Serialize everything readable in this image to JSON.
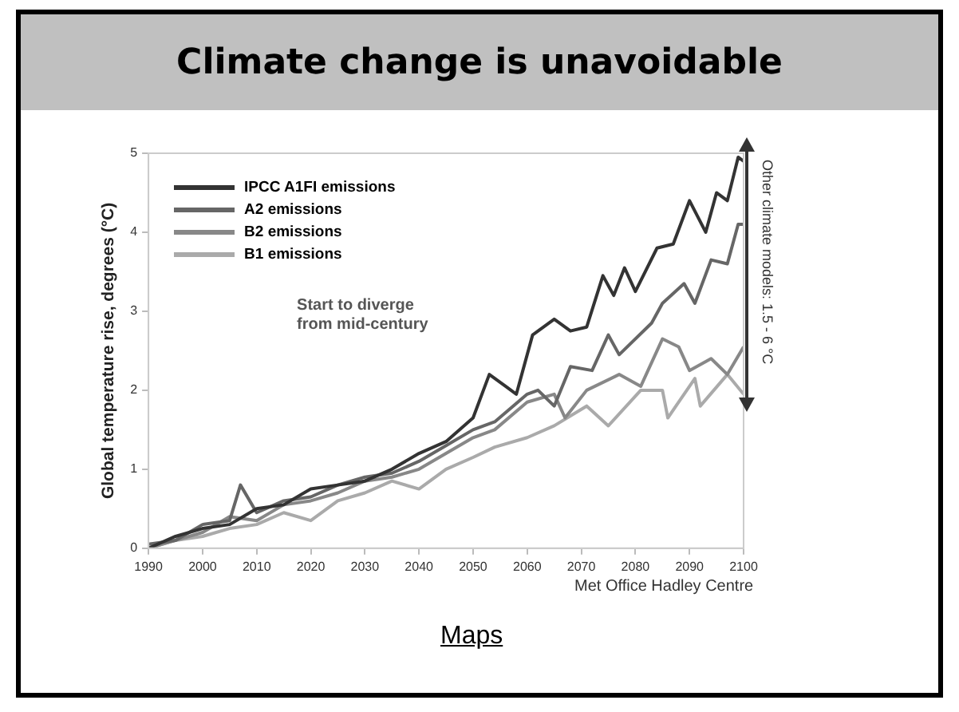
{
  "chart_data": {
    "type": "line",
    "title": "Climate change is unavoidable",
    "ylabel": "Global temperature rise, degrees (°C)",
    "xlim": [
      1990,
      2100
    ],
    "xticks": [
      1990,
      2000,
      2010,
      2020,
      2030,
      2040,
      2050,
      2060,
      2070,
      2080,
      2090,
      2100
    ],
    "ylim": [
      0,
      5
    ],
    "yticks": [
      0,
      1,
      2,
      3,
      4,
      5
    ],
    "grid": false,
    "legend": "top left",
    "marker": "none",
    "line_style": "solid",
    "annotations": [
      "Start to diverge from mid-century",
      "Other climate models: 1.5 - 6 °C",
      "Met Office Hadley Centre",
      "Maps"
    ],
    "series": [
      {
        "name": "IPCC A1FI emissions",
        "color": "#333333",
        "x": [
          1990,
          1995,
          2000,
          2005,
          2010,
          2015,
          2020,
          2025,
          2030,
          2035,
          2040,
          2045,
          2050,
          2053,
          2056,
          2058,
          2061,
          2065,
          2068,
          2071,
          2074,
          2076,
          2078,
          2080,
          2084,
          2087,
          2090,
          2093,
          2095,
          2097,
          2099,
          2100
        ],
        "values": [
          0,
          0.15,
          0.25,
          0.3,
          0.5,
          0.55,
          0.75,
          0.8,
          0.85,
          1.0,
          1.2,
          1.35,
          1.65,
          2.2,
          2.05,
          1.95,
          2.7,
          2.9,
          2.75,
          2.8,
          3.45,
          3.2,
          3.55,
          3.25,
          3.8,
          3.85,
          4.4,
          4.0,
          4.5,
          4.4,
          4.95,
          4.9
        ]
      },
      {
        "name": "A2 emissions",
        "color": "#666666",
        "x": [
          1990,
          1995,
          2000,
          2005,
          2007,
          2010,
          2015,
          2020,
          2025,
          2030,
          2035,
          2040,
          2045,
          2050,
          2054,
          2060,
          2062,
          2065,
          2068,
          2072,
          2075,
          2077,
          2083,
          2085,
          2089,
          2091,
          2094,
          2097,
          2099,
          2100
        ],
        "values": [
          0.05,
          0.1,
          0.3,
          0.35,
          0.8,
          0.45,
          0.6,
          0.65,
          0.8,
          0.9,
          0.95,
          1.1,
          1.3,
          1.5,
          1.6,
          1.95,
          2.0,
          1.8,
          2.3,
          2.25,
          2.7,
          2.45,
          2.85,
          3.1,
          3.35,
          3.1,
          3.65,
          3.6,
          4.1,
          4.1
        ]
      },
      {
        "name": "B2 emissions",
        "color": "#888888",
        "x": [
          1990,
          1995,
          2000,
          2005,
          2010,
          2015,
          2020,
          2025,
          2030,
          2035,
          2040,
          2045,
          2050,
          2054,
          2060,
          2065,
          2067,
          2071,
          2077,
          2081,
          2085,
          2088,
          2090,
          2094,
          2097,
          2100
        ],
        "values": [
          0,
          0.1,
          0.2,
          0.4,
          0.35,
          0.55,
          0.6,
          0.7,
          0.85,
          0.9,
          1.0,
          1.2,
          1.4,
          1.5,
          1.85,
          1.95,
          1.65,
          2.0,
          2.2,
          2.05,
          2.65,
          2.55,
          2.25,
          2.4,
          2.2,
          2.55
        ]
      },
      {
        "name": "B1 emissions",
        "color": "#aaaaaa",
        "x": [
          1990,
          1995,
          2000,
          2005,
          2010,
          2015,
          2020,
          2025,
          2030,
          2035,
          2040,
          2045,
          2050,
          2054,
          2060,
          2065,
          2071,
          2075,
          2081,
          2085,
          2086,
          2091,
          2092,
          2097,
          2100
        ],
        "values": [
          0,
          0.1,
          0.15,
          0.25,
          0.3,
          0.45,
          0.35,
          0.6,
          0.7,
          0.85,
          0.75,
          1.0,
          1.15,
          1.28,
          1.4,
          1.55,
          1.8,
          1.55,
          2.0,
          2.0,
          1.65,
          2.15,
          1.8,
          2.2,
          1.95
        ]
      }
    ]
  }
}
